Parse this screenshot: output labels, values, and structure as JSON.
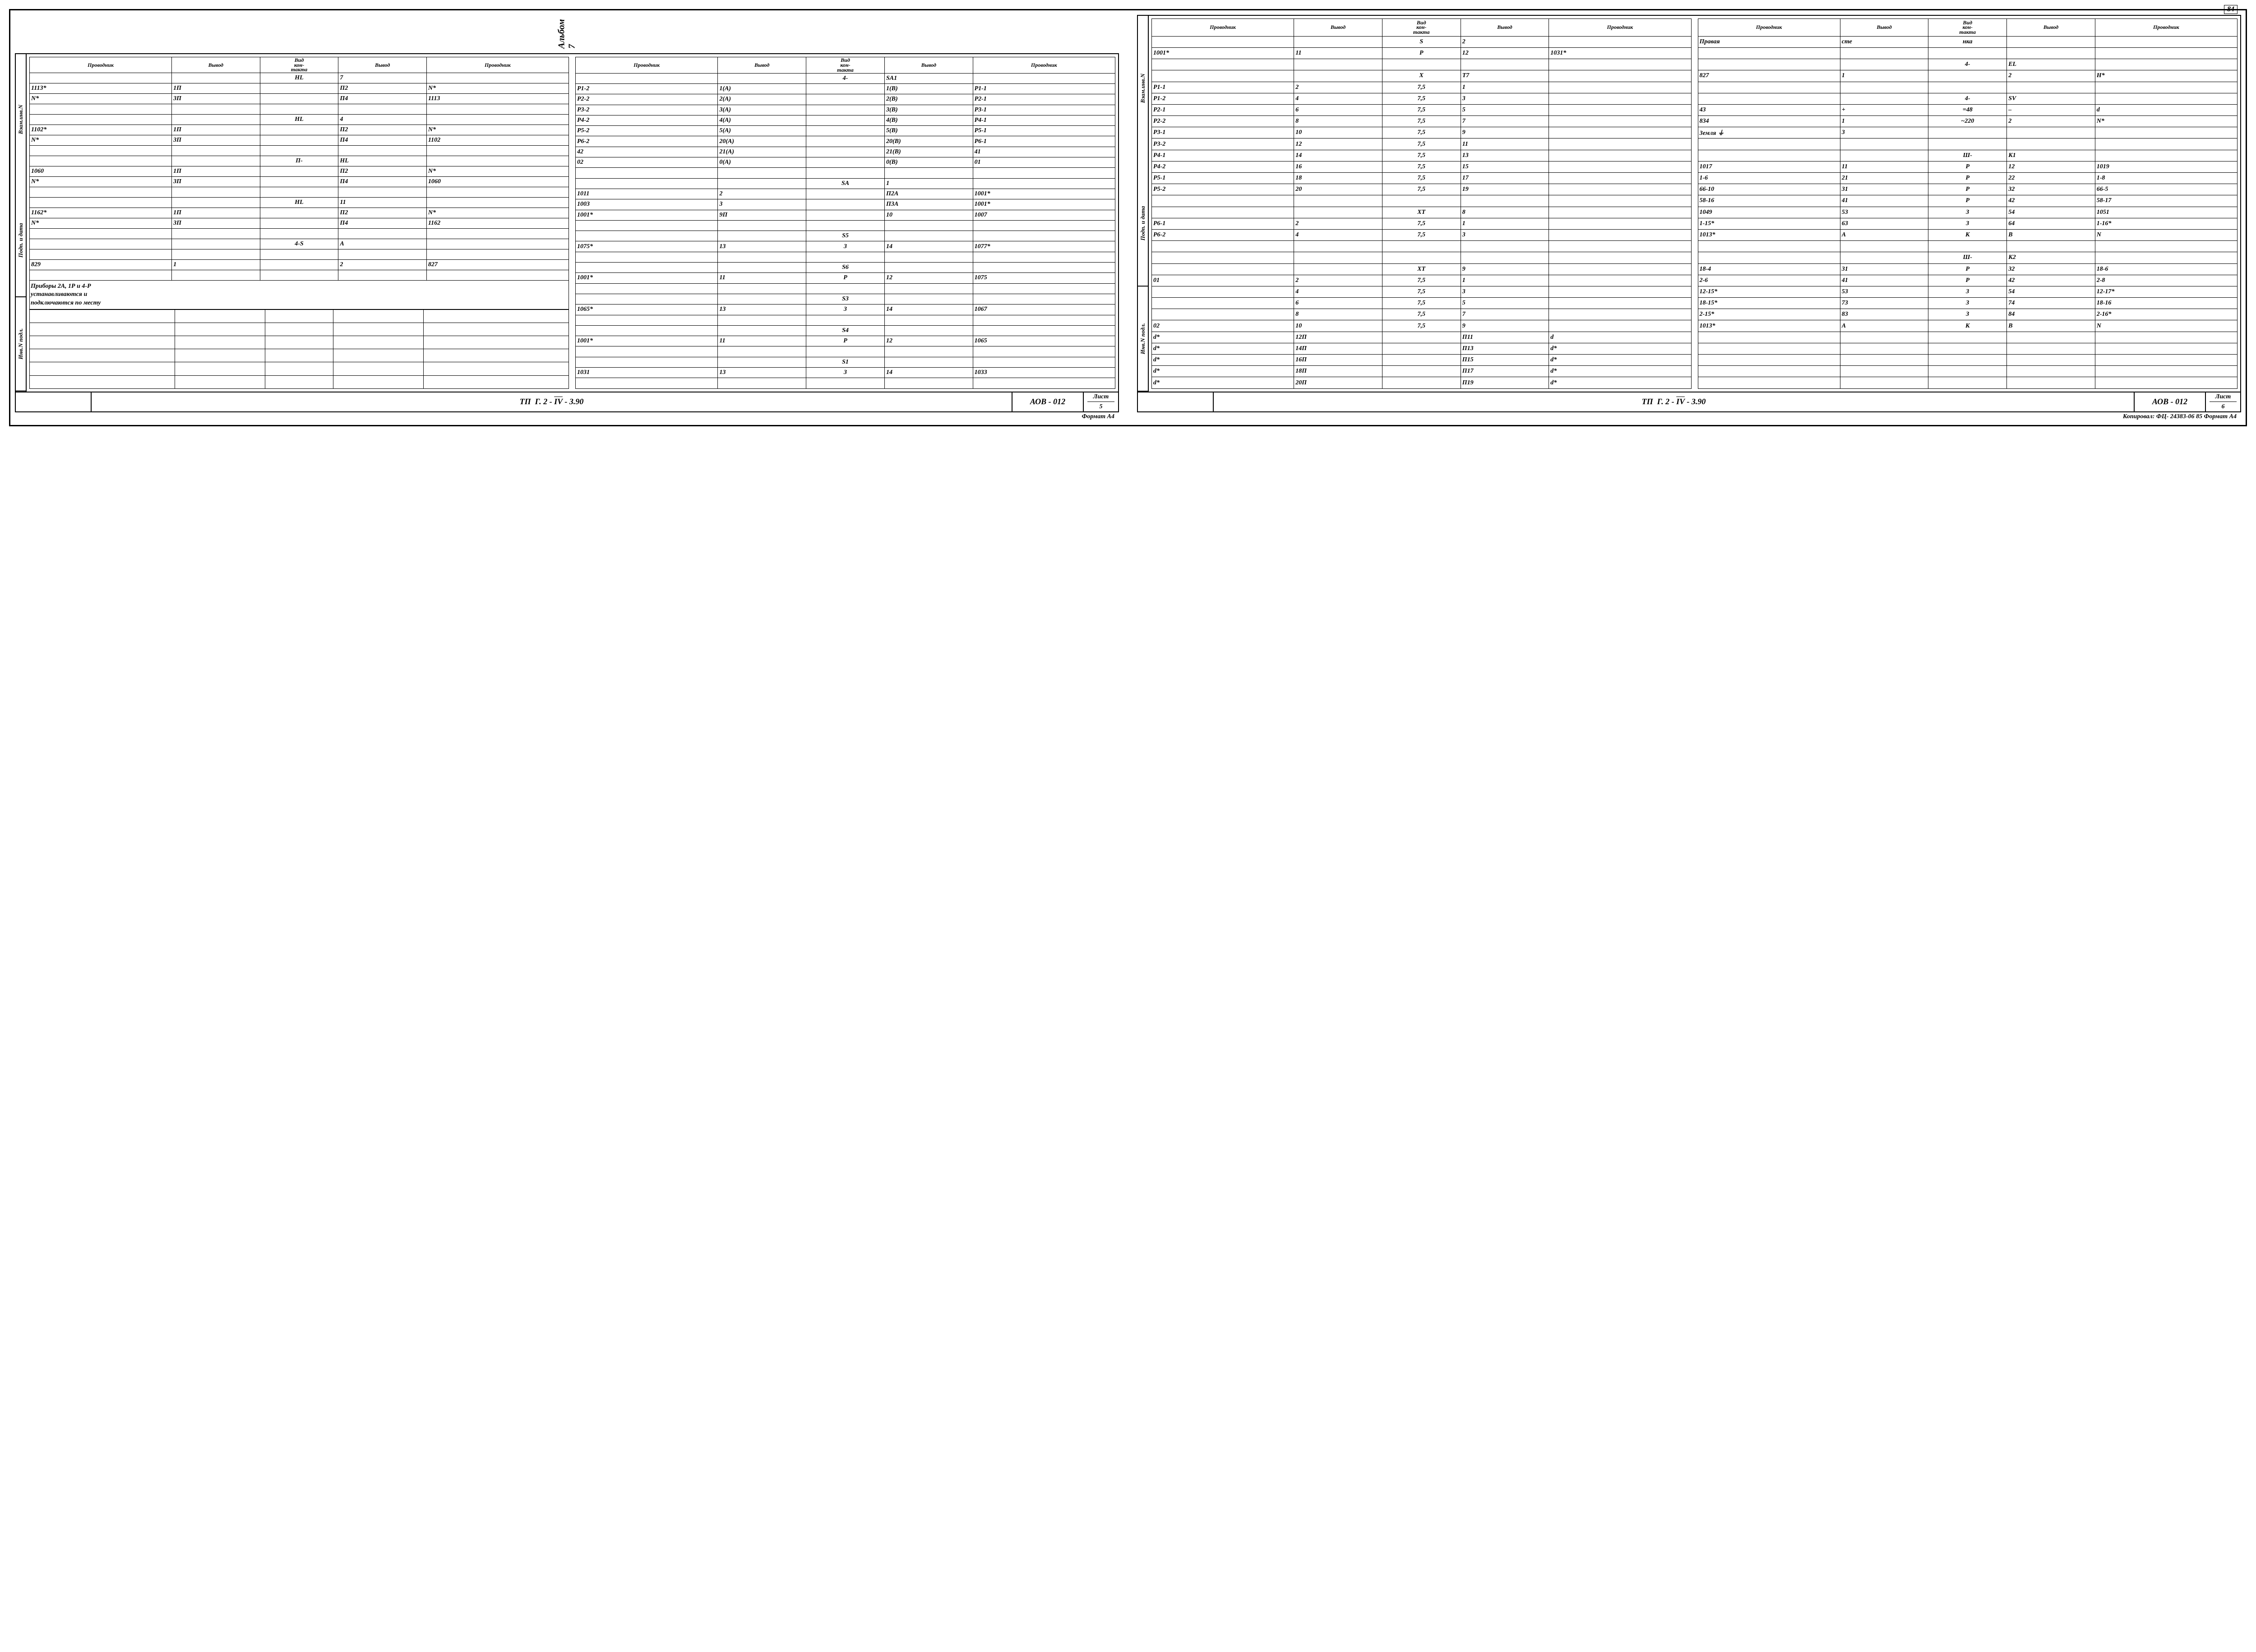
{
  "album_label": "Альбом 7",
  "page_number_top": "84",
  "headers": {
    "provodnik": "Проводник",
    "vyvod": "Вывод",
    "vid_kontakta_l1": "Вид",
    "vid_kontakta_l2": "кон-",
    "vid_kontakta_l3": "такта"
  },
  "side_labels": {
    "a": "Взам.инв.N",
    "b": "Подп. и дата",
    "c": "Инв.N подл."
  },
  "title_block": {
    "tp": "ТП",
    "code": "Г. 2 - IV - 3.90",
    "code_over": "IV",
    "doc": "АОВ - 012",
    "sheet_label": "Лист",
    "sheet5": "5",
    "sheet6": "6"
  },
  "footer_left": "Формат А4",
  "footer_right": "Копировал: ФЦ- 24383-06 85 Формат А4",
  "note_lines": [
    "Приборы 2А, 1Р и 4-Р",
    "устанавливаются и",
    "подключаются по месту"
  ],
  "page5": {
    "t1": [
      [
        "",
        "",
        "НL",
        "7",
        ""
      ],
      [
        "1113*",
        "1П",
        "",
        "П2",
        "N*"
      ],
      [
        "N*",
        "3П",
        "",
        "П4",
        "1113"
      ],
      [
        "",
        "",
        "",
        "",
        ""
      ],
      [
        "",
        "",
        "НL",
        "4",
        ""
      ],
      [
        "1102*",
        "1П",
        "",
        "П2",
        "N*"
      ],
      [
        "N*",
        "3П",
        "",
        "П4",
        "1102"
      ],
      [
        "",
        "",
        "",
        "",
        ""
      ],
      [
        "",
        "",
        "П-",
        "НL",
        ""
      ],
      [
        "1060",
        "1П",
        "",
        "П2",
        "N*"
      ],
      [
        "N*",
        "3П",
        "",
        "П4",
        "1060"
      ],
      [
        "",
        "",
        "",
        "",
        ""
      ],
      [
        "",
        "",
        "НL",
        "11",
        ""
      ],
      [
        "1162*",
        "1П",
        "",
        "П2",
        "N*"
      ],
      [
        "N*",
        "3П",
        "",
        "П4",
        "1162"
      ],
      [
        "",
        "",
        "",
        "",
        ""
      ],
      [
        "",
        "",
        "4-S",
        "A",
        ""
      ],
      [
        "",
        "",
        "",
        "",
        ""
      ],
      [
        "829",
        "1",
        "",
        "2",
        "827"
      ],
      [
        "",
        "",
        "",
        "",
        ""
      ]
    ],
    "t2": [
      [
        "",
        "",
        "4-",
        "SA1",
        ""
      ],
      [
        "P1-2",
        "1(А)",
        "",
        "1(В)",
        "P1-1"
      ],
      [
        "P2-2",
        "2(А)",
        "",
        "2(В)",
        "P2-1"
      ],
      [
        "P3-2",
        "3(А)",
        "",
        "3(В)",
        "P3-1"
      ],
      [
        "P4-2",
        "4(А)",
        "",
        "4(В)",
        "P4-1"
      ],
      [
        "P5-2",
        "5(А)",
        "",
        "5(В)",
        "P5-1"
      ],
      [
        "P6-2",
        "20(А)",
        "",
        "20(В)",
        "P6-1"
      ],
      [
        "42",
        "21(А)",
        "",
        "21(В)",
        "41"
      ],
      [
        "02",
        "0(А)",
        "",
        "0(В)",
        "01"
      ],
      [
        "",
        "",
        "",
        "",
        ""
      ],
      [
        "",
        "",
        "SA",
        "1",
        ""
      ],
      [
        "1011",
        "2",
        "",
        "П2А",
        "1001*"
      ],
      [
        "1003",
        "3",
        "",
        "П3А",
        "1001*"
      ],
      [
        "1001*",
        "9П",
        "",
        "10",
        "1007"
      ],
      [
        "",
        "",
        "",
        "",
        ""
      ],
      [
        "",
        "",
        "S5",
        "",
        ""
      ],
      [
        "1075*",
        "13",
        "З",
        "14",
        "1077*"
      ],
      [
        "",
        "",
        "",
        "",
        ""
      ],
      [
        "",
        "",
        "S6",
        "",
        ""
      ],
      [
        "1001*",
        "11",
        "Р",
        "12",
        "1075"
      ],
      [
        "",
        "",
        "",
        "",
        ""
      ],
      [
        "",
        "",
        "S3",
        "",
        ""
      ],
      [
        "1065*",
        "13",
        "З",
        "14",
        "1067"
      ],
      [
        "",
        "",
        "",
        "",
        ""
      ],
      [
        "",
        "",
        "S4",
        "",
        ""
      ],
      [
        "1001*",
        "11",
        "Р",
        "12",
        "1065"
      ],
      [
        "",
        "",
        "",
        "",
        ""
      ],
      [
        "",
        "",
        "S1",
        "",
        ""
      ],
      [
        "1031",
        "13",
        "З",
        "14",
        "1033"
      ],
      [
        "",
        "",
        "",
        "",
        ""
      ]
    ]
  },
  "page6": {
    "t1": [
      [
        "",
        "",
        "S",
        "2",
        ""
      ],
      [
        "1001*",
        "11",
        "Р",
        "12",
        "1031*"
      ],
      [
        "",
        "",
        "",
        "",
        ""
      ],
      [
        "",
        "",
        "Х",
        "Т7",
        ""
      ],
      [
        "P1-1",
        "2",
        "7,5",
        "1",
        ""
      ],
      [
        "P1-2",
        "4",
        "7,5",
        "3",
        ""
      ],
      [
        "P2-1",
        "6",
        "7,5",
        "5",
        ""
      ],
      [
        "P2-2",
        "8",
        "7,5",
        "7",
        ""
      ],
      [
        "P3-1",
        "10",
        "7,5",
        "9",
        ""
      ],
      [
        "P3-2",
        "12",
        "7,5",
        "11",
        ""
      ],
      [
        "P4-1",
        "14",
        "7,5",
        "13",
        ""
      ],
      [
        "P4-2",
        "16",
        "7,5",
        "15",
        ""
      ],
      [
        "P5-1",
        "18",
        "7,5",
        "17",
        ""
      ],
      [
        "P5-2",
        "20",
        "7,5",
        "19",
        ""
      ],
      [
        "",
        "",
        "",
        "",
        ""
      ],
      [
        "",
        "",
        "ХТ",
        "8",
        ""
      ],
      [
        "P6-1",
        "2",
        "7,5",
        "1",
        ""
      ],
      [
        "P6-2",
        "4",
        "7,5",
        "3",
        ""
      ],
      [
        "",
        "",
        "",
        "",
        ""
      ],
      [
        "",
        "",
        "",
        "",
        ""
      ],
      [
        "",
        "",
        "ХТ",
        "9",
        ""
      ],
      [
        "01",
        "2",
        "7,5",
        "1",
        ""
      ],
      [
        "",
        "4",
        "7,5",
        "3",
        ""
      ],
      [
        "",
        "6",
        "7,5",
        "5",
        ""
      ],
      [
        "",
        "8",
        "7,5",
        "7",
        ""
      ],
      [
        "02",
        "10",
        "7,5",
        "9",
        ""
      ],
      [
        "d*",
        "12П",
        "",
        "П11",
        "d"
      ],
      [
        "d*",
        "14П",
        "",
        "П13",
        "d*"
      ],
      [
        "d*",
        "16П",
        "",
        "П15",
        "d*"
      ],
      [
        "d*",
        "18П",
        "",
        "П17",
        "d*"
      ],
      [
        "d*",
        "20П",
        "",
        "П19",
        "d*"
      ]
    ],
    "t2": [
      [
        "Правая",
        "сте",
        "нка",
        "",
        ""
      ],
      [
        "",
        "",
        "",
        "",
        ""
      ],
      [
        "",
        "",
        "4-",
        "EL",
        ""
      ],
      [
        "827",
        "1",
        "",
        "2",
        "Н*"
      ],
      [
        "",
        "",
        "",
        "",
        ""
      ],
      [
        "",
        "",
        "4-",
        "SV",
        ""
      ],
      [
        "43",
        "+",
        "=48",
        "–",
        "d"
      ],
      [
        "834",
        "1",
        "~220",
        "2",
        "N*"
      ],
      [
        "Земля ⏚",
        "3",
        "",
        "",
        ""
      ],
      [
        "",
        "",
        "",
        "",
        ""
      ],
      [
        "",
        "",
        "Ш-",
        "К1",
        ""
      ],
      [
        "1017",
        "11",
        "Р",
        "12",
        "1019"
      ],
      [
        "1-6",
        "21",
        "Р",
        "22",
        "1-8"
      ],
      [
        "66-10",
        "31",
        "Р",
        "32",
        "66-5"
      ],
      [
        "58-16",
        "41",
        "Р",
        "42",
        "58-17"
      ],
      [
        "1049",
        "53",
        "З",
        "54",
        "1051"
      ],
      [
        "1-15*",
        "63",
        "З",
        "64",
        "1-16*"
      ],
      [
        "1013*",
        "А",
        "К",
        "В",
        "N"
      ],
      [
        "",
        "",
        "",
        "",
        ""
      ],
      [
        "",
        "",
        "Ш-",
        "К2",
        ""
      ],
      [
        "18-4",
        "31",
        "Р",
        "32",
        "18-6"
      ],
      [
        "2-6",
        "41",
        "Р",
        "42",
        "2-8"
      ],
      [
        "12-15*",
        "53",
        "З",
        "54",
        "12-17*"
      ],
      [
        "18-15*",
        "73",
        "З",
        "74",
        "18-16"
      ],
      [
        "2-15*",
        "83",
        "З",
        "84",
        "2-16*"
      ],
      [
        "1013*",
        "А",
        "К",
        "В",
        "N"
      ],
      [
        "",
        "",
        "",
        "",
        ""
      ],
      [
        "",
        "",
        "",
        "",
        ""
      ],
      [
        "",
        "",
        "",
        "",
        ""
      ],
      [
        "",
        "",
        "",
        "",
        ""
      ],
      [
        "",
        "",
        "",
        "",
        ""
      ]
    ]
  }
}
